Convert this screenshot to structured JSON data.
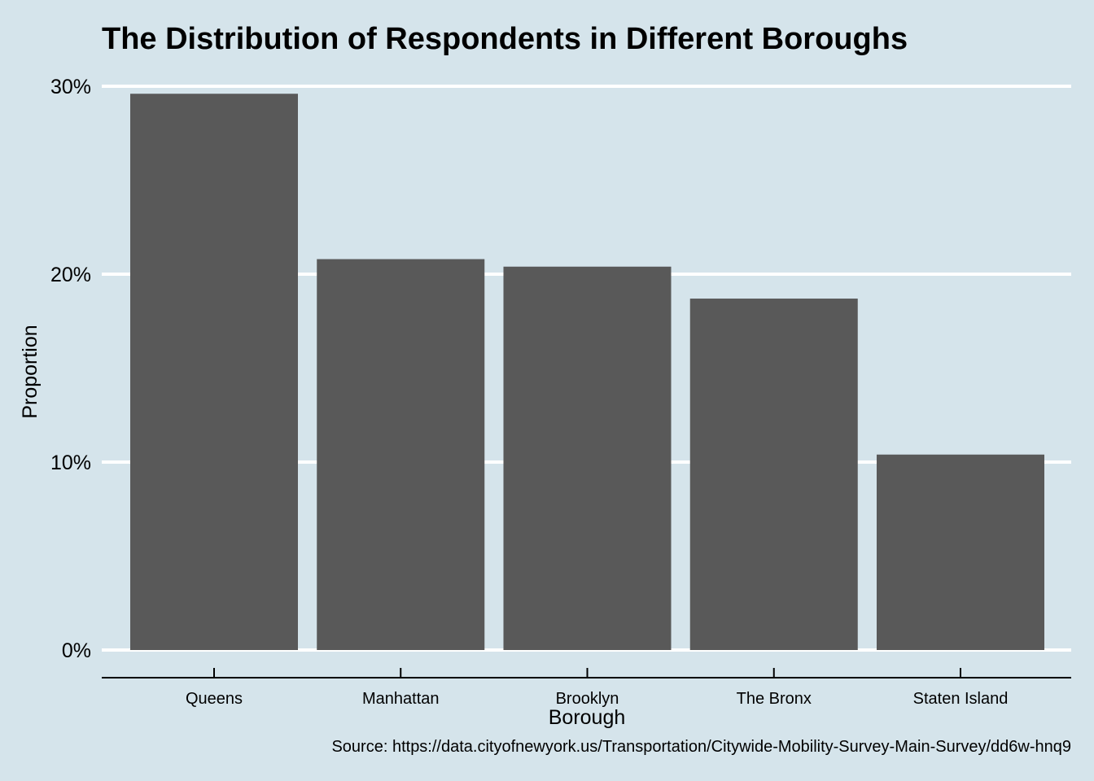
{
  "chart_data": {
    "type": "bar",
    "title": "The Distribution of Respondents in Different Boroughs",
    "xlabel": "Borough",
    "ylabel": "Proportion",
    "caption": "Source: https://data.cityofnewyork.us/Transportation/Citywide-Mobility-Survey-Main-Survey/dd6w-hnq9",
    "categories": [
      "Queens",
      "Manhattan",
      "Brooklyn",
      "The Bronx",
      "Staten Island"
    ],
    "values": [
      29.6,
      20.8,
      20.4,
      18.7,
      10.4
    ],
    "value_unit": "percent",
    "ylim": [
      0,
      30
    ],
    "yticks": [
      0,
      10,
      20,
      30
    ],
    "ytick_labels": [
      "0%",
      "10%",
      "20%",
      "30%"
    ],
    "grid": "horizontal major lines",
    "legend": "none",
    "colors": {
      "background": "#d5e4eb",
      "bar": "#595959",
      "grid": "#ffffff",
      "axis": "#000000",
      "text": "#000000"
    }
  }
}
